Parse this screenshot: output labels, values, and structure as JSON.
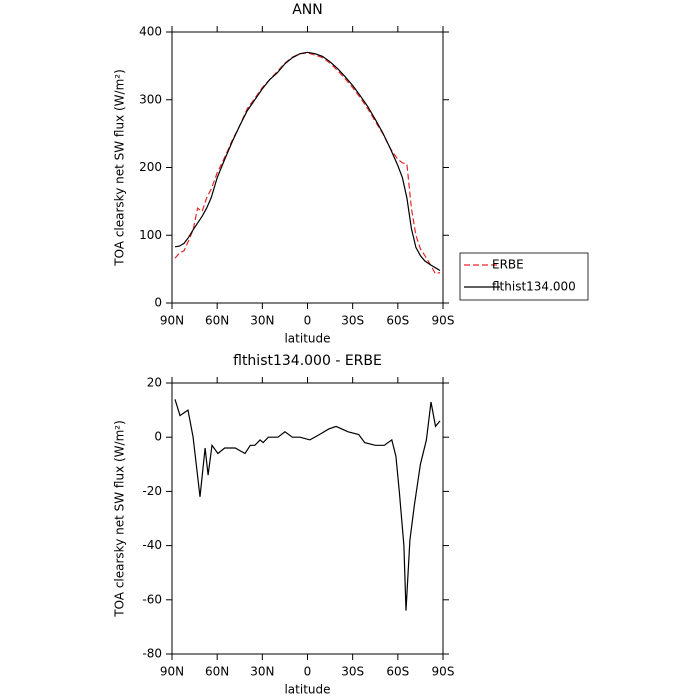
{
  "chart_data": [
    {
      "type": "line",
      "title": "ANN",
      "x_label": "latitude",
      "y_label": "TOA clearsky net SW flux (W/m²)",
      "x": [
        88,
        85,
        82,
        79,
        76,
        73,
        70,
        67,
        64,
        60,
        55,
        50,
        45,
        40,
        35,
        30,
        25,
        20,
        15,
        10,
        5,
        0,
        -5,
        -10,
        -15,
        -20,
        -25,
        -30,
        -35,
        -40,
        -45,
        -50,
        -55,
        -60,
        -63,
        -66,
        -69,
        -72,
        -75,
        -78,
        -82,
        -85,
        -88
      ],
      "series": [
        {
          "name": "ERBE",
          "color": "#e8262a",
          "dashed": true,
          "values": [
            66,
            74,
            77,
            92,
            108,
            140,
            135,
            155,
            168,
            192,
            215,
            240,
            262,
            287,
            302,
            318,
            330,
            342,
            354,
            363,
            368,
            369,
            366,
            362,
            354,
            343,
            331,
            318,
            303,
            287,
            268,
            250,
            228,
            212,
            207,
            205,
            140,
            100,
            80,
            70,
            55,
            43,
            45
          ]
        },
        {
          "name": "flthist134.000",
          "color": "#000000",
          "dashed": false,
          "values": [
            83,
            84,
            88,
            97,
            108,
            118,
            128,
            140,
            155,
            185,
            212,
            238,
            262,
            284,
            300,
            316,
            330,
            340,
            353,
            362,
            368,
            370,
            368,
            364,
            356,
            346,
            334,
            321,
            306,
            290,
            271,
            251,
            228,
            203,
            185,
            155,
            110,
            82,
            70,
            62,
            56,
            52,
            48
          ]
        }
      ],
      "xlim": [
        90,
        -90
      ],
      "xticks": [
        {
          "value": 90,
          "label": "90N"
        },
        {
          "value": 60,
          "label": "60N"
        },
        {
          "value": 30,
          "label": "30N"
        },
        0,
        {
          "value": -30,
          "label": "30S"
        },
        {
          "value": -60,
          "label": "60S"
        },
        {
          "value": -90,
          "label": "90S"
        }
      ],
      "ylim": [
        0,
        400
      ],
      "yticks": [
        0,
        100,
        200,
        300,
        400
      ],
      "legend": "right"
    },
    {
      "type": "line",
      "title": "flthist134.000 - ERBE",
      "x_label": "latitude",
      "y_label": "TOA clearsky net SW flux (W/m²)",
      "x": [
        88,
        84.7,
        79.4,
        76,
        71.4,
        68,
        66,
        63.4,
        59.5,
        55,
        48,
        41.5,
        38,
        35,
        31.5,
        29.5,
        26,
        19.6,
        15,
        10,
        5,
        -1.6,
        -8,
        -14,
        -19,
        -27,
        -34,
        -38,
        -45,
        -51,
        -56,
        -58.7,
        -61,
        -64,
        -65.4,
        -68,
        -71,
        -75,
        -79,
        -82,
        -85,
        -88
      ],
      "series": [
        {
          "name": "flthist134.000 - ERBE",
          "color": "#000000",
          "dashed": false,
          "values": [
            14,
            8,
            10,
            0,
            -22,
            -4,
            -14,
            -3,
            -6,
            -4,
            -4,
            -6,
            -3,
            -3,
            -1,
            -2,
            0,
            0,
            2,
            0,
            0,
            -1,
            1,
            3,
            4,
            2,
            1,
            -2,
            -3,
            -3,
            -1,
            -7,
            -20,
            -40,
            -64,
            -38,
            -25,
            -10,
            -1,
            13,
            4,
            6
          ]
        }
      ],
      "xlim": [
        90,
        -90
      ],
      "xticks": [
        {
          "value": 90,
          "label": "90N"
        },
        {
          "value": 60,
          "label": "60N"
        },
        {
          "value": 30,
          "label": "30N"
        },
        0,
        {
          "value": -30,
          "label": "30S"
        },
        {
          "value": -60,
          "label": "60S"
        },
        {
          "value": -90,
          "label": "90S"
        }
      ],
      "ylim": [
        -80,
        20
      ],
      "yticks": [
        -80,
        -60,
        -40,
        -20,
        0,
        20
      ],
      "legend": "none"
    }
  ]
}
